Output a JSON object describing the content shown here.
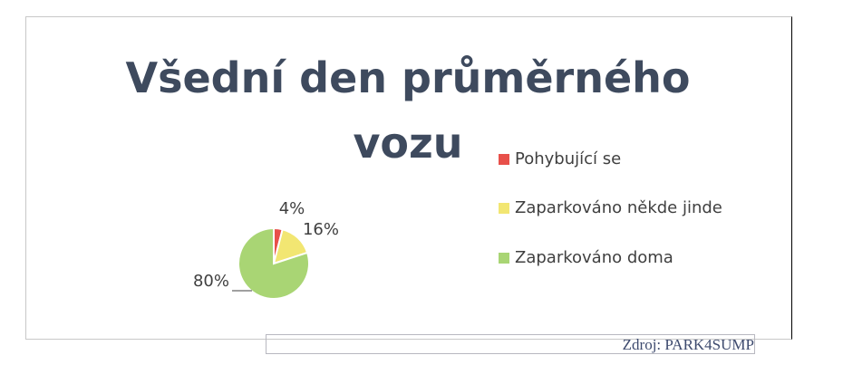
{
  "chart_data": {
    "type": "pie",
    "title": "Všední den průměrného vozu",
    "categories": [
      "Pohybující se",
      "Zaparkováno někde jinde",
      "Zaparkováno doma"
    ],
    "values": [
      4,
      16,
      80
    ],
    "value_labels": [
      "4%",
      "16%",
      "80%"
    ],
    "colors": [
      "#e8504a",
      "#f2e672",
      "#a9d574"
    ]
  },
  "source": "Zdroj: PARK4SUMP"
}
